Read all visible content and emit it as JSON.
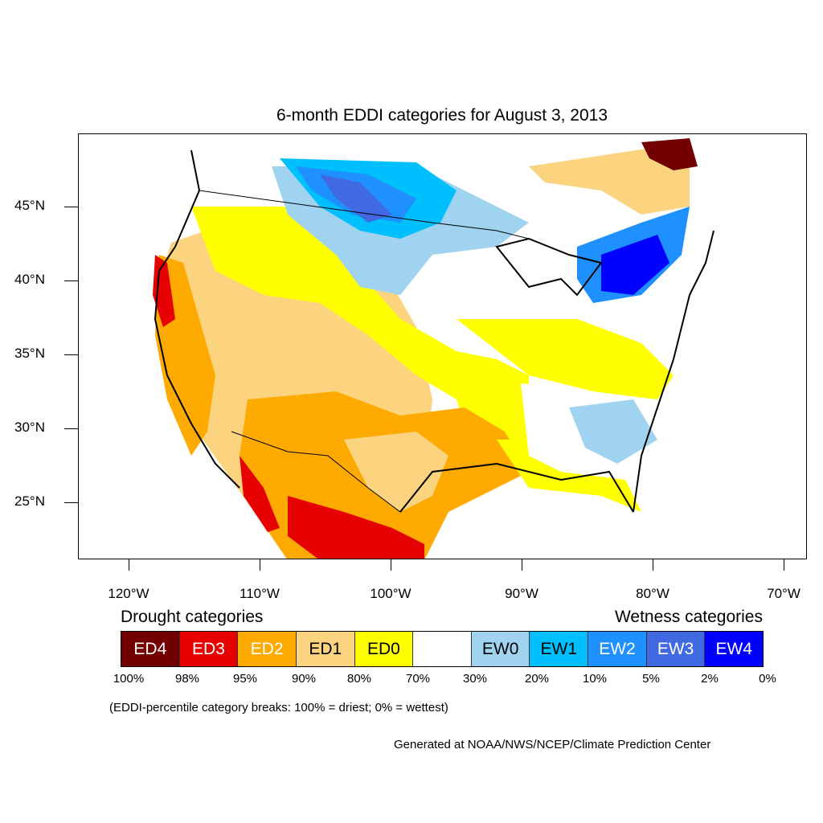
{
  "title": "6-month EDDI categories for August 3, 2013",
  "latitude_labels": [
    "45°N",
    "40°N",
    "35°N",
    "30°N",
    "25°N"
  ],
  "longitude_labels": [
    "120°W",
    "110°W",
    "100°W",
    "90°W",
    "80°W",
    "70°W"
  ],
  "legend": {
    "drought_heading": "Drought categories",
    "wetness_heading": "Wetness categories",
    "categories": [
      {
        "label": "ED4",
        "color": "#730000",
        "text_color": "#ffffff"
      },
      {
        "label": "ED3",
        "color": "#e60000",
        "text_color": "#ffffff"
      },
      {
        "label": "ED2",
        "color": "#ffaa00",
        "text_color": "#ffffff"
      },
      {
        "label": "ED1",
        "color": "#fcd37f",
        "text_color": "#000000"
      },
      {
        "label": "ED0",
        "color": "#ffff00",
        "text_color": "#000000"
      },
      {
        "label": "",
        "color": "#ffffff",
        "text_color": "#000000"
      },
      {
        "label": "EW0",
        "color": "#9fd3f0",
        "text_color": "#000000"
      },
      {
        "label": "EW1",
        "color": "#00bfff",
        "text_color": "#000000"
      },
      {
        "label": "EW2",
        "color": "#1e90ff",
        "text_color": "#ffffff"
      },
      {
        "label": "EW3",
        "color": "#4169e1",
        "text_color": "#ffffff"
      },
      {
        "label": "EW4",
        "color": "#0000ff",
        "text_color": "#ffffff"
      }
    ],
    "breaks": [
      "100%",
      "98%",
      "95%",
      "90%",
      "80%",
      "70%",
      "30%",
      "20%",
      "10%",
      "5%",
      "2%",
      "0%"
    ]
  },
  "note": "(EDDI-percentile category breaks: 100% = driest; 0% = wettest)",
  "credit": "Generated at NOAA/NWS/NCEP/Climate Prediction Center"
}
